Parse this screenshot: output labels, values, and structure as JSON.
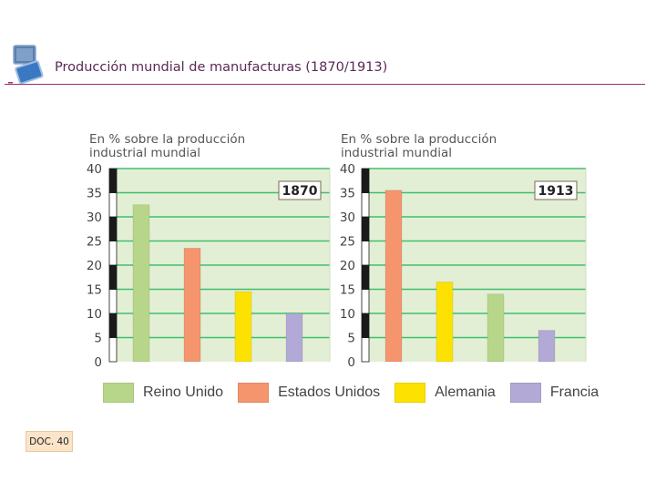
{
  "header": {
    "title": "Producción mundial de manufacturas (1870/1913)",
    "icon": "presentation-screen-icon"
  },
  "colors": {
    "reino_unido": "#b8d68a",
    "estados_unidos": "#f4956e",
    "alemania": "#fde100",
    "francia": "#b2a9d6",
    "plot_bg": "#e3efd4",
    "grid": "#3fbf6f",
    "header_rule": "#a0306e"
  },
  "chart_data": [
    {
      "type": "bar",
      "title": "1870",
      "ylabel": "En % sobre la producción industrial mundial",
      "ylabel_lines": [
        "En % sobre la producción",
        "industrial mundial"
      ],
      "categories": [
        "Reino Unido",
        "Estados Unidos",
        "Alemania",
        "Francia"
      ],
      "values": [
        32.5,
        23.5,
        14.5,
        10
      ],
      "ylim": [
        0,
        40
      ],
      "yticks": [
        0,
        5,
        10,
        15,
        20,
        25,
        30,
        35,
        40
      ],
      "grid": true
    },
    {
      "type": "bar",
      "title": "1913",
      "ylabel": "En % sobre la producción industrial mundial",
      "ylabel_lines": [
        "En % sobre la producción",
        "industrial mundial"
      ],
      "categories": [
        "Estados Unidos",
        "Alemania",
        "Reino Unido",
        "Francia"
      ],
      "values": [
        35.5,
        16.5,
        14,
        6.5
      ],
      "ylim": [
        0,
        40
      ],
      "yticks": [
        0,
        5,
        10,
        15,
        20,
        25,
        30,
        35,
        40
      ],
      "grid": true
    }
  ],
  "legend": [
    {
      "label": "Reino Unido",
      "color": "#b8d68a"
    },
    {
      "label": "Estados Unidos",
      "color": "#f4956e"
    },
    {
      "label": "Alemania",
      "color": "#fde100"
    },
    {
      "label": "Francia",
      "color": "#b2a9d6"
    }
  ],
  "footer": {
    "doc_label": "DOC. 40"
  }
}
